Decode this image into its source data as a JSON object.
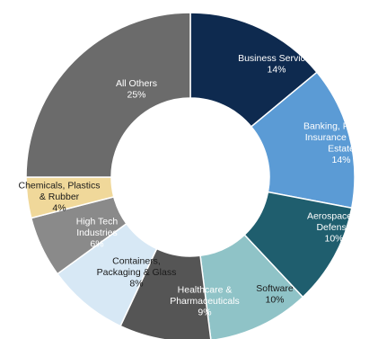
{
  "chart_data": {
    "type": "pie",
    "variant": "donut",
    "title": "",
    "legend": "none",
    "slices": [
      {
        "label_lines": [
          "Business Services",
          "14%"
        ],
        "value": 14,
        "color": "#0e2a4f",
        "text_color": "#ffffff"
      },
      {
        "label_lines": [
          "Banking, Finance,",
          "Insurance & Real",
          "Estate",
          "14%"
        ],
        "value": 14,
        "color": "#5b9bd5",
        "text_color": "#ffffff"
      },
      {
        "label_lines": [
          "Aerospace &",
          "Defense",
          "10%"
        ],
        "value": 10,
        "color": "#1f5e6e",
        "text_color": "#ffffff"
      },
      {
        "label_lines": [
          "Software",
          "10%"
        ],
        "value": 10,
        "color": "#8fc3c7",
        "text_color": "#1a1a1a"
      },
      {
        "label_lines": [
          "Healthcare &",
          "Pharmaceuticals",
          "9%"
        ],
        "value": 9,
        "color": "#555555",
        "text_color": "#ffffff"
      },
      {
        "label_lines": [
          "Containers,",
          "Packaging & Glass",
          "8%"
        ],
        "value": 8,
        "color": "#d7e8f5",
        "text_color": "#1a1a1a"
      },
      {
        "label_lines": [
          "High Tech",
          "Industries",
          "6%"
        ],
        "value": 6,
        "color": "#8a8a8a",
        "text_color": "#ffffff"
      },
      {
        "label_lines": [
          "Chemicals, Plastics",
          "& Rubber",
          "4%"
        ],
        "value": 4,
        "color": "#f0d89a",
        "text_color": "#1a1a1a"
      },
      {
        "label_lines": [
          "All Others",
          "25%"
        ],
        "value": 25,
        "color": "#6b6b6b",
        "text_color": "#ffffff"
      }
    ]
  }
}
